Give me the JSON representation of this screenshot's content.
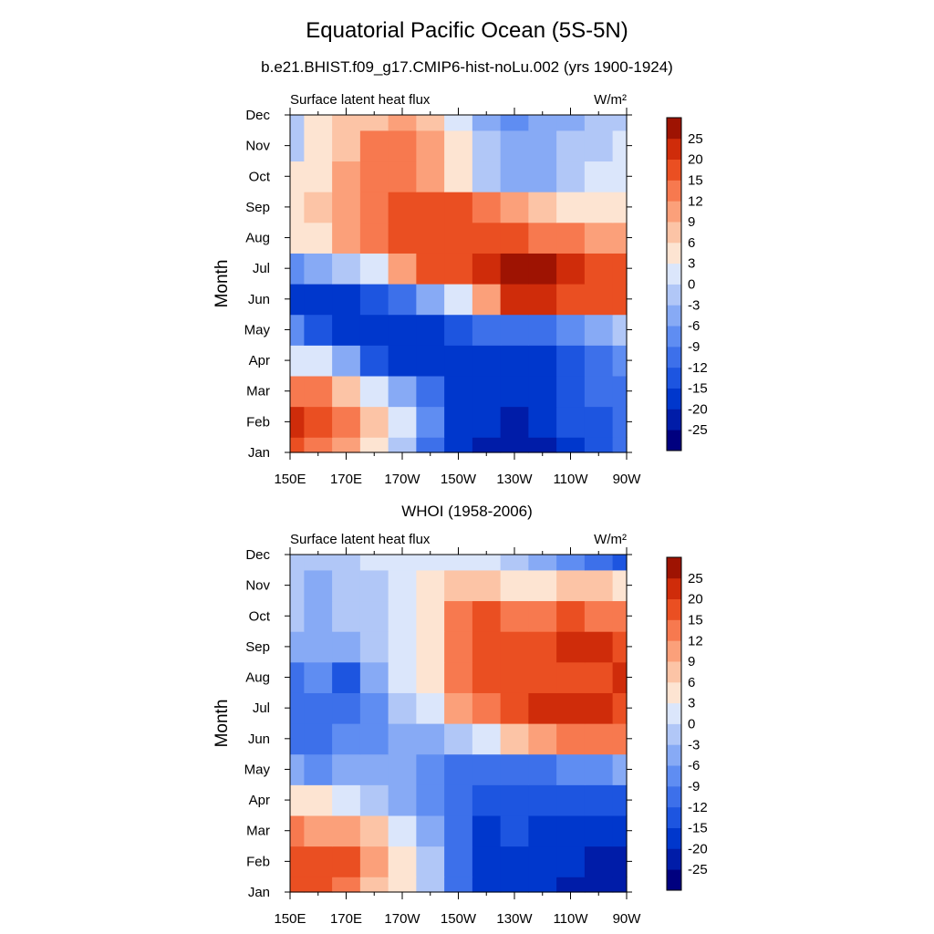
{
  "figure": {
    "title": "Equatorial Pacific Ocean (5S-5N)"
  },
  "chart_data": [
    {
      "type": "heatmap",
      "title": "b.e21.BHIST.f09_g17.CMIP6-hist-noLu.002 (yrs 1900-1924)",
      "left_label": "Surface latent heat flux",
      "units": "W/m²",
      "xlabel": "",
      "ylabel": "Month",
      "x": [
        "150E",
        "160E",
        "170E",
        "180",
        "170W",
        "160W",
        "150W",
        "140W",
        "130W",
        "120W",
        "110W",
        "100W",
        "90W"
      ],
      "x_tick_labels": [
        "150E",
        "170E",
        "170W",
        "150W",
        "130W",
        "110W",
        "90W"
      ],
      "y": [
        "Jan",
        "Feb",
        "Mar",
        "Apr",
        "May",
        "Jun",
        "Jul",
        "Aug",
        "Sep",
        "Oct",
        "Nov",
        "Dec"
      ],
      "values": [
        [
          17,
          12,
          9,
          4,
          -3,
          -12,
          -18,
          -21,
          -22,
          -22,
          -17,
          -14,
          -12
        ],
        [
          20,
          18,
          13,
          7,
          0,
          -9,
          -16,
          -20,
          -21,
          -20,
          -15,
          -13,
          -12
        ],
        [
          13,
          12,
          7,
          2,
          -5,
          -12,
          -18,
          -20,
          -20,
          -17,
          -13,
          -11,
          -10
        ],
        [
          2,
          0,
          -6,
          -13,
          -18,
          -20,
          -19,
          -19,
          -18,
          -16,
          -13,
          -10,
          -8
        ],
        [
          -9,
          -13,
          -17,
          -20,
          -20,
          -17,
          -14,
          -12,
          -11,
          -10,
          -8,
          -6,
          -3
        ],
        [
          -16,
          -17,
          -16,
          -14,
          -10,
          -4,
          2,
          9,
          22,
          24,
          17,
          15,
          16
        ],
        [
          -8,
          -6,
          -3,
          2,
          9,
          15,
          18,
          22,
          26,
          26,
          20,
          17,
          16
        ],
        [
          3,
          5,
          9,
          12,
          17,
          17,
          19,
          18,
          16,
          14,
          12,
          10,
          10
        ],
        [
          4,
          6,
          10,
          14,
          17,
          17,
          16,
          13,
          10,
          7,
          5,
          4,
          4
        ],
        [
          3,
          5,
          9,
          12,
          12,
          9,
          4,
          -3,
          -6,
          -4,
          -2,
          1,
          2
        ],
        [
          -1,
          4,
          8,
          12,
          12,
          9,
          4,
          -3,
          -6,
          -5,
          -3,
          -1,
          0
        ],
        [
          -3,
          3,
          6,
          8,
          9,
          6,
          0,
          -5,
          -8,
          -6,
          -4,
          -3,
          -3
        ]
      ],
      "colorbar": {
        "levels": [
          -25,
          -20,
          -15,
          -12,
          -9,
          -6,
          -3,
          0,
          3,
          6,
          9,
          12,
          15,
          20,
          25
        ],
        "colors": [
          "#00007f",
          "#001ca8",
          "#0037cc",
          "#1d55e0",
          "#3d70ea",
          "#5f8df2",
          "#87aaf5",
          "#b1c7f7",
          "#dbe6fb",
          "#fde4d2",
          "#fcc4a6",
          "#fba07a",
          "#f7794f",
          "#ea4f22",
          "#cf2c0a",
          "#9e1302"
        ]
      }
    },
    {
      "type": "heatmap",
      "title": "WHOI (1958-2006)",
      "left_label": "Surface latent heat flux",
      "units": "W/m²",
      "xlabel": "",
      "ylabel": "Month",
      "x": [
        "150E",
        "160E",
        "170E",
        "180",
        "170W",
        "160W",
        "150W",
        "140W",
        "130W",
        "120W",
        "110W",
        "100W",
        "90W"
      ],
      "x_tick_labels": [
        "150E",
        "170E",
        "170W",
        "150W",
        "130W",
        "110W",
        "90W"
      ],
      "y": [
        "Jan",
        "Feb",
        "Mar",
        "Apr",
        "May",
        "Jun",
        "Jul",
        "Aug",
        "Sep",
        "Oct",
        "Nov",
        "Dec"
      ],
      "values": [
        [
          16,
          16,
          13,
          8,
          3,
          -3,
          -10,
          -16,
          -17,
          -19,
          -22,
          -23,
          -25
        ],
        [
          17,
          17,
          17,
          11,
          4,
          -3,
          -12,
          -16,
          -16,
          -17,
          -20,
          -22,
          -22
        ],
        [
          12,
          11,
          10,
          6,
          0,
          -6,
          -12,
          -17,
          -15,
          -16,
          -18,
          -19,
          -19
        ],
        [
          3,
          3,
          2,
          -1,
          -4,
          -8,
          -12,
          -15,
          -13,
          -14,
          -15,
          -15,
          -15
        ],
        [
          -6,
          -7,
          -6,
          -6,
          -6,
          -8,
          -10,
          -12,
          -11,
          -10,
          -9,
          -7,
          -5
        ],
        [
          -11,
          -10,
          -9,
          -7,
          -6,
          -4,
          -2,
          2,
          7,
          9,
          12,
          13,
          12
        ],
        [
          -12,
          -12,
          -11,
          -7,
          -2,
          1,
          10,
          14,
          17,
          20,
          21,
          21,
          18
        ],
        [
          -10,
          -9,
          -13,
          -4,
          0,
          4,
          13,
          16,
          19,
          18,
          17,
          17,
          21
        ],
        [
          -5,
          -4,
          -6,
          -1,
          1,
          3,
          14,
          16,
          16,
          17,
          20,
          23,
          19
        ],
        [
          -3,
          -4,
          -3,
          -1,
          2,
          4,
          14,
          15,
          14,
          14,
          15,
          14,
          14
        ],
        [
          -3,
          -4,
          -3,
          -1,
          2,
          3,
          8,
          7,
          5,
          5,
          6,
          6,
          5
        ],
        [
          -2,
          -1,
          -1,
          0,
          1,
          1,
          1,
          0,
          -2,
          -4,
          -7,
          -12,
          -15
        ]
      ],
      "colorbar": {
        "levels": [
          -25,
          -20,
          -15,
          -12,
          -9,
          -6,
          -3,
          0,
          3,
          6,
          9,
          12,
          15,
          20,
          25
        ],
        "colors": [
          "#00007f",
          "#001ca8",
          "#0037cc",
          "#1d55e0",
          "#3d70ea",
          "#5f8df2",
          "#87aaf5",
          "#b1c7f7",
          "#dbe6fb",
          "#fde4d2",
          "#fcc4a6",
          "#fba07a",
          "#f7794f",
          "#ea4f22",
          "#cf2c0a",
          "#9e1302"
        ]
      }
    }
  ]
}
